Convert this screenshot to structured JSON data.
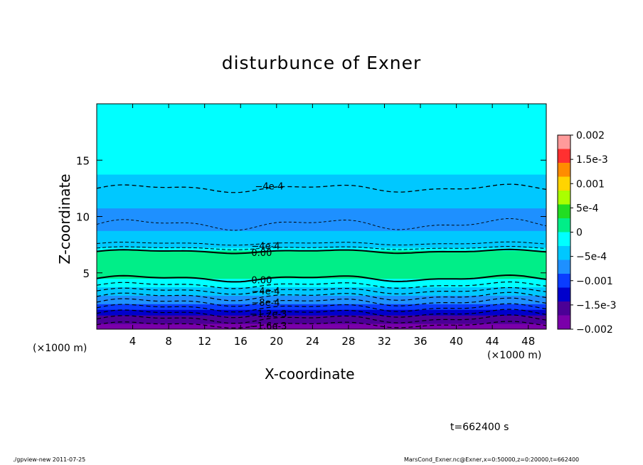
{
  "chart_data": {
    "type": "heatmap",
    "title": "disturbunce of Exner",
    "xlabel": "X-coordinate",
    "ylabel": "Z-coordinate",
    "x_unit": "(×1000 m)",
    "x_unit_right": "(×1000 m)",
    "xlim": [
      0,
      50
    ],
    "ylim": [
      0,
      20
    ],
    "x_ticks": [
      4,
      8,
      12,
      16,
      20,
      24,
      28,
      32,
      36,
      40,
      44,
      48
    ],
    "y_ticks": [
      5,
      10,
      15
    ],
    "colorbar": {
      "ticks": [
        "0.002",
        "1.5e-3",
        "0.001",
        "5e-4",
        "0",
        "−5e-4",
        "−0.001",
        "−1.5e-3",
        "−0.002"
      ],
      "values": [
        0.002,
        0.0015,
        0.001,
        0.0005,
        0,
        -0.0005,
        -0.001,
        -0.0015,
        -0.002
      ],
      "colors": [
        "#ff9a9a",
        "#ff3030",
        "#ff8c00",
        "#ffd400",
        "#aaff00",
        "#22dd22",
        "#00ee88",
        "#00ffff",
        "#00c8ff",
        "#1e90ff",
        "#0a3cff",
        "#0000cc",
        "#4b0096",
        "#7a00aa"
      ]
    },
    "contour_labels": [
      {
        "text": "−4e-4",
        "x": 17.6,
        "z": 12.7
      },
      {
        "text": "−4e-4",
        "x": 17.2,
        "z": 7.4
      },
      {
        "text": "0.00",
        "x": 17.2,
        "z": 6.8
      },
      {
        "text": "0.00",
        "x": 17.2,
        "z": 4.4
      },
      {
        "text": "−4e-4",
        "x": 17.2,
        "z": 3.4
      },
      {
        "text": "−8e-4",
        "x": 17.2,
        "z": 2.4
      },
      {
        "text": "−1.2e-3",
        "x": 17.0,
        "z": 1.4
      },
      {
        "text": "−1.6e-3",
        "x": 17.0,
        "z": 0.3
      }
    ],
    "field_profile": [
      {
        "z": 0.0,
        "value": -0.00195
      },
      {
        "z": 0.5,
        "value": -0.00175
      },
      {
        "z": 1.0,
        "value": -0.0015
      },
      {
        "z": 1.5,
        "value": -0.00125
      },
      {
        "z": 2.0,
        "value": -0.001
      },
      {
        "z": 2.5,
        "value": -0.0008
      },
      {
        "z": 3.0,
        "value": -0.0006
      },
      {
        "z": 3.5,
        "value": -0.0004
      },
      {
        "z": 4.0,
        "value": -0.0002
      },
      {
        "z": 4.5,
        "value": 0.0
      },
      {
        "z": 5.5,
        "value": 0.00015
      },
      {
        "z": 6.5,
        "value": 0.0001
      },
      {
        "z": 7.0,
        "value": 0.0
      },
      {
        "z": 7.5,
        "value": -0.0004
      },
      {
        "z": 8.5,
        "value": -0.00055
      },
      {
        "z": 10.0,
        "value": -0.00065
      },
      {
        "z": 11.5,
        "value": -0.0005
      },
      {
        "z": 13.0,
        "value": -0.00035
      },
      {
        "z": 15.0,
        "value": -0.0002
      },
      {
        "z": 17.0,
        "value": -0.0001
      },
      {
        "z": 20.0,
        "value": -0.0001
      }
    ]
  },
  "time_label": "t=662400 s",
  "footer_left": "./gpview-new  2011-07-25",
  "footer_right": "MarsCond_Exner.nc@Exner,x=0:50000,z=0:20000,t=662400"
}
